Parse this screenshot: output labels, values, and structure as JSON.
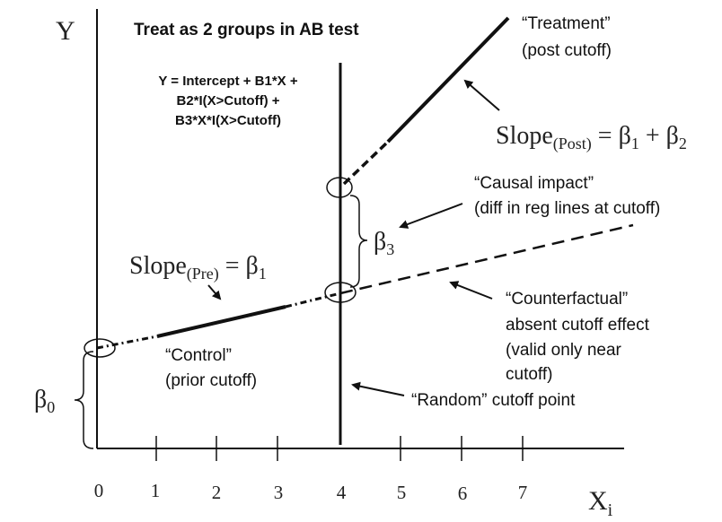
{
  "axes": {
    "y_label": "Y",
    "x_label": "X",
    "x_label_sub": "i",
    "x_ticks": [
      "0",
      "1",
      "2",
      "3",
      "4",
      "5",
      "6",
      "7"
    ]
  },
  "title": "Treat as 2 groups in AB test",
  "equation": {
    "line1": "Y = Intercept + B1*X +",
    "line2": "B2*I(X>Cutoff) +",
    "line3": "B3*X*I(X>Cutoff)"
  },
  "labels": {
    "treatment_line1": "“Treatment”",
    "treatment_line2": "(post cutoff)",
    "slope_post_main": "Slope",
    "slope_post_sub": "(Post)",
    "slope_post_eq": " = β",
    "slope_post_sub1": "1",
    "slope_post_plus": " + β",
    "slope_post_sub2": "2",
    "causal_line1": "“Causal impact”",
    "causal_line2": "(diff in reg lines at cutoff)",
    "beta3": "β",
    "beta3_sub": "3",
    "slope_pre_main": "Slope",
    "slope_pre_sub": "(Pre)",
    "slope_pre_eq": " = β",
    "slope_pre_sub1": "1",
    "counterfactual_line1": "“Counterfactual”",
    "counterfactual_line2": "absent cutoff effect",
    "counterfactual_line3": "(valid only near",
    "counterfactual_line4": "cutoff)",
    "control_line1": "“Control”",
    "control_line2": "(prior cutoff)",
    "random_cutoff": "“Random” cutoff point",
    "beta0": "β",
    "beta0_sub": "0"
  },
  "colors": {
    "ink": "#111111"
  }
}
